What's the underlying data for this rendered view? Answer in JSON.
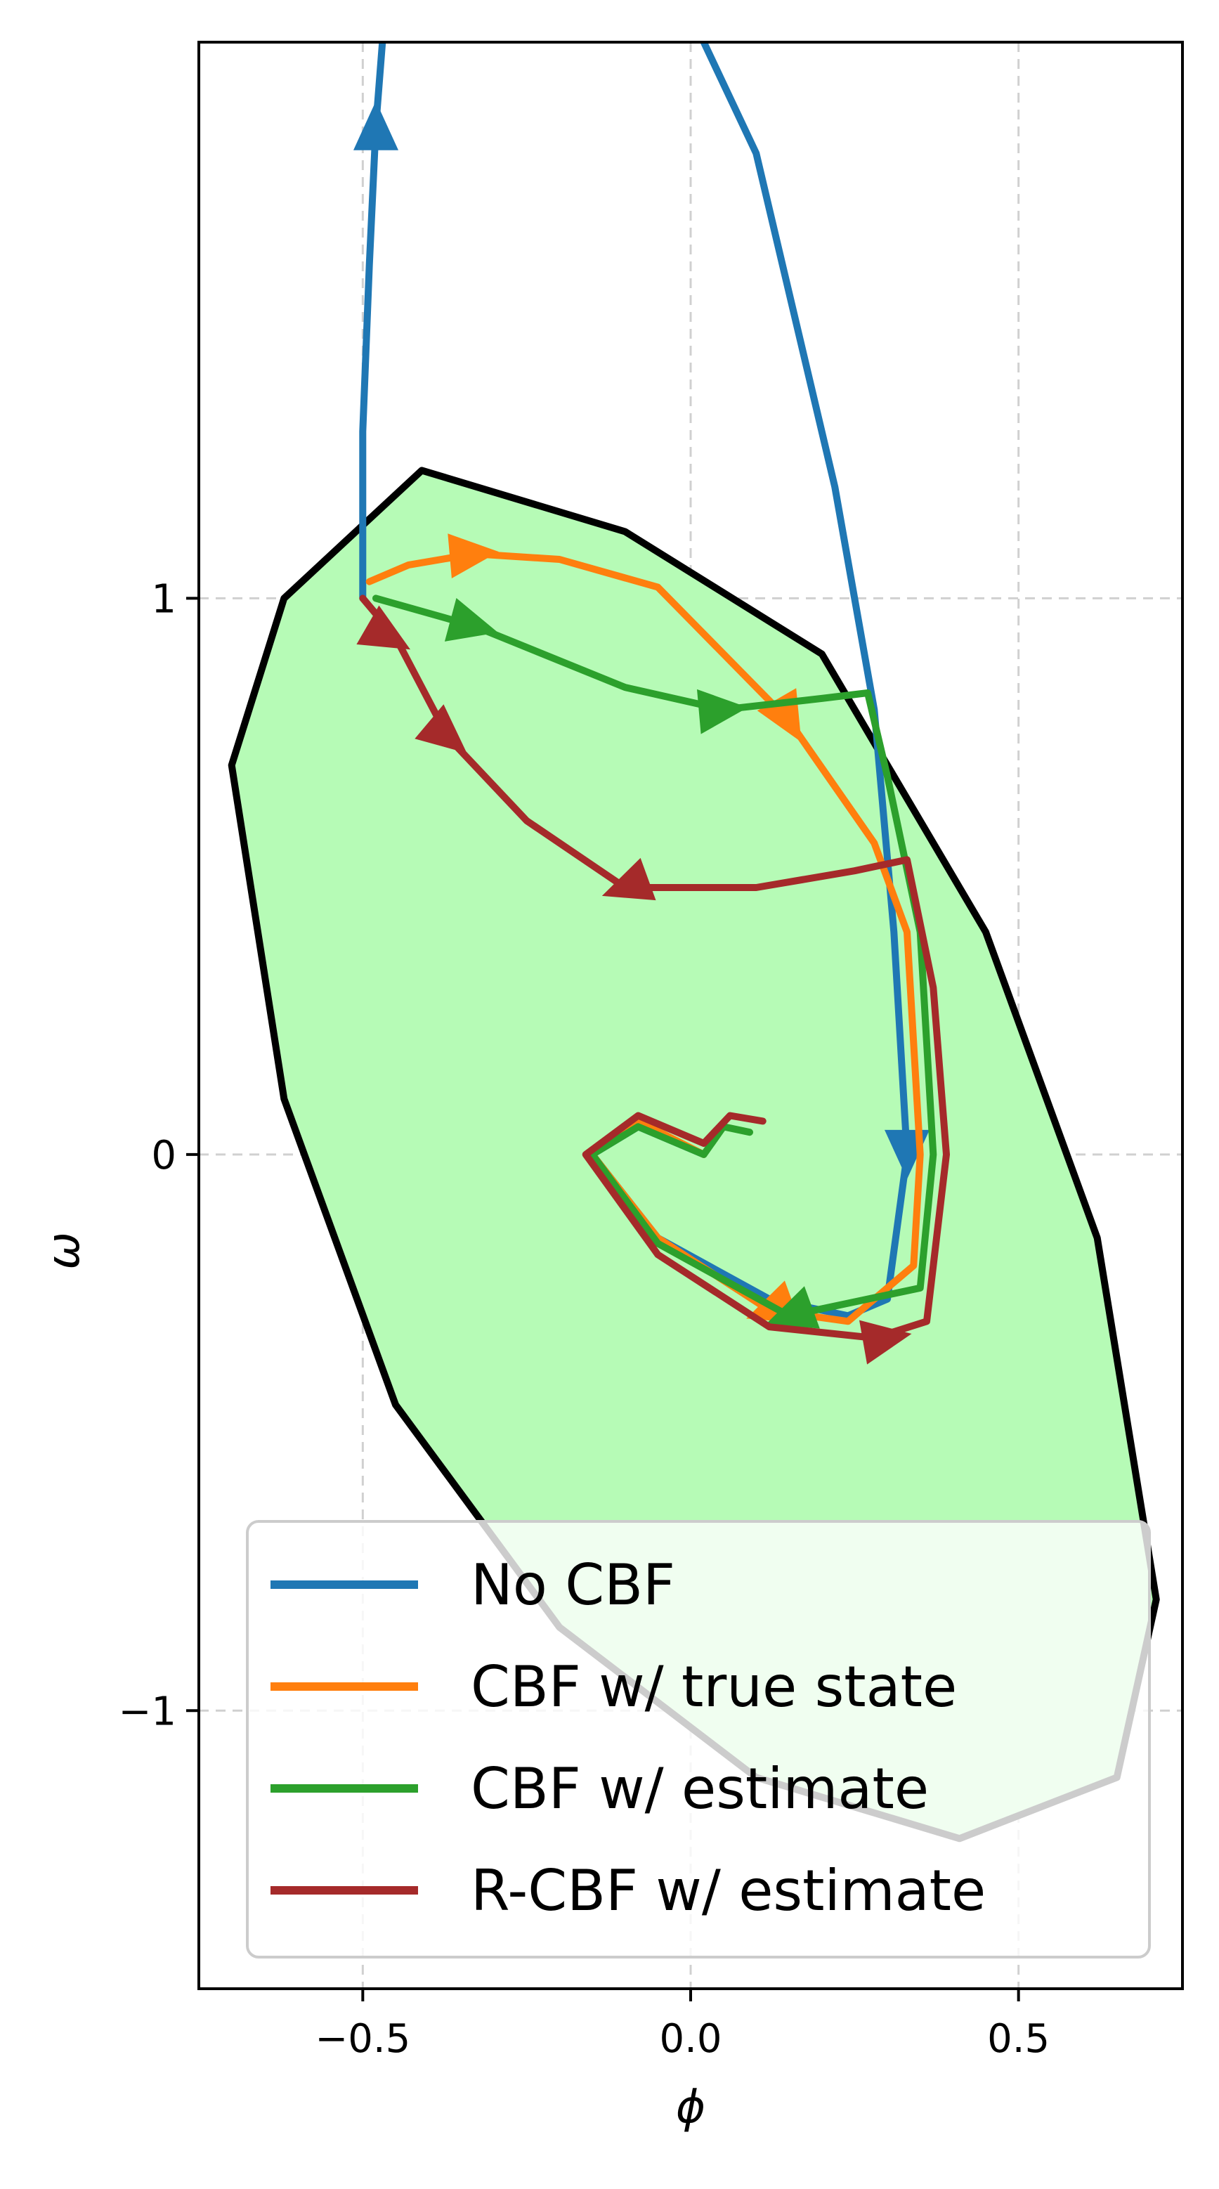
{
  "chart_data": {
    "type": "line",
    "xlabel": "ϕ",
    "ylabel": "ω",
    "xlim": [
      -0.75,
      0.75
    ],
    "ylim": [
      -1.5,
      2.0
    ],
    "xticks": [
      -0.5,
      0.0,
      0.5
    ],
    "xtick_labels": [
      "−0.5",
      "0.0",
      "0.5"
    ],
    "yticks": [
      -1,
      0,
      1
    ],
    "ytick_labels": [
      "−1",
      "0",
      "1"
    ],
    "grid": true,
    "legend_position": "lower-center",
    "safe_set": {
      "shape": "ellipse",
      "center": [
        0.0,
        0.0
      ],
      "fill_color": "#b6fbb6",
      "edge_color": "#000000",
      "boundary": [
        [
          -0.7,
          0.7
        ],
        [
          -0.62,
          1.0
        ],
        [
          -0.41,
          1.23
        ],
        [
          -0.1,
          1.12
        ],
        [
          0.2,
          0.9
        ],
        [
          0.45,
          0.4
        ],
        [
          0.62,
          -0.15
        ],
        [
          0.71,
          -0.8
        ],
        [
          0.65,
          -1.12
        ],
        [
          0.41,
          -1.23
        ],
        [
          0.1,
          -1.12
        ],
        [
          -0.2,
          -0.85
        ],
        [
          -0.45,
          -0.45
        ],
        [
          -0.62,
          0.1
        ],
        [
          -0.7,
          0.7
        ]
      ]
    },
    "series": [
      {
        "name": "No CBF",
        "color": "#1f77b4",
        "points": [
          [
            0.02,
            0.0
          ],
          [
            -0.08,
            0.05
          ],
          [
            -0.15,
            0.0
          ],
          [
            -0.05,
            -0.15
          ],
          [
            0.12,
            -0.26
          ],
          [
            0.24,
            -0.29
          ],
          [
            0.3,
            -0.26
          ],
          [
            0.33,
            0.0
          ],
          [
            0.31,
            0.4
          ],
          [
            0.28,
            0.8
          ],
          [
            0.22,
            1.2
          ],
          [
            0.1,
            1.8
          ],
          [
            0.02,
            2.0
          ]
        ],
        "prefix_points": [
          [
            -0.5,
            1.0
          ],
          [
            -0.5,
            1.3
          ],
          [
            -0.49,
            1.6
          ],
          [
            -0.48,
            1.85
          ],
          [
            -0.47,
            2.0
          ]
        ],
        "arrows": [
          [
            -0.48,
            1.85,
            90
          ],
          [
            0.33,
            0.0,
            270
          ]
        ]
      },
      {
        "name": "CBF w/ true state",
        "color": "#ff7f0e",
        "points": [
          [
            -0.49,
            1.03
          ],
          [
            -0.43,
            1.06
          ],
          [
            -0.33,
            1.08
          ],
          [
            -0.2,
            1.07
          ],
          [
            -0.05,
            1.02
          ],
          [
            0.15,
            0.78
          ],
          [
            0.28,
            0.56
          ],
          [
            0.33,
            0.4
          ],
          [
            0.35,
            0.0
          ],
          [
            0.34,
            -0.2
          ],
          [
            0.24,
            -0.3
          ],
          [
            0.12,
            -0.28
          ],
          [
            -0.05,
            -0.15
          ],
          [
            -0.15,
            0.0
          ],
          [
            -0.08,
            0.06
          ],
          [
            0.02,
            0.0
          ]
        ],
        "arrows": [
          [
            -0.33,
            1.08,
            5
          ],
          [
            0.15,
            0.78,
            300
          ],
          [
            0.12,
            -0.28,
            200
          ]
        ]
      },
      {
        "name": "CBF w/ estimate",
        "color": "#2ca02c",
        "points": [
          [
            -0.48,
            1.0
          ],
          [
            -0.33,
            0.95
          ],
          [
            -0.1,
            0.84
          ],
          [
            0.05,
            0.8
          ],
          [
            0.2,
            0.82
          ],
          [
            0.27,
            0.83
          ],
          [
            0.3,
            0.68
          ],
          [
            0.35,
            0.4
          ],
          [
            0.37,
            0.0
          ],
          [
            0.35,
            -0.24
          ],
          [
            0.15,
            -0.29
          ],
          [
            -0.05,
            -0.16
          ],
          [
            -0.15,
            0.0
          ],
          [
            -0.08,
            0.05
          ],
          [
            0.02,
            0.0
          ],
          [
            0.05,
            0.05
          ],
          [
            0.09,
            0.04
          ]
        ],
        "arrows": [
          [
            -0.33,
            0.95,
            345
          ],
          [
            0.05,
            0.8,
            5
          ],
          [
            0.15,
            -0.29,
            200
          ]
        ]
      },
      {
        "name": "R-CBF w/ estimate",
        "color": "#a52a2a",
        "points": [
          [
            -0.5,
            1.0
          ],
          [
            -0.45,
            0.93
          ],
          [
            -0.37,
            0.75
          ],
          [
            -0.25,
            0.6
          ],
          [
            -0.1,
            0.48
          ],
          [
            0.1,
            0.48
          ],
          [
            0.25,
            0.51
          ],
          [
            0.33,
            0.53
          ],
          [
            0.37,
            0.3
          ],
          [
            0.39,
            0.0
          ],
          [
            0.36,
            -0.3
          ],
          [
            0.28,
            -0.33
          ],
          [
            0.12,
            -0.31
          ],
          [
            -0.05,
            -0.18
          ],
          [
            -0.16,
            0.0
          ],
          [
            -0.08,
            0.07
          ],
          [
            0.02,
            0.02
          ],
          [
            0.06,
            0.07
          ],
          [
            0.11,
            0.06
          ]
        ],
        "arrows": [
          [
            -0.46,
            0.93,
            330
          ],
          [
            -0.37,
            0.75,
            320
          ],
          [
            -0.1,
            0.48,
            200
          ],
          [
            0.3,
            -0.33,
            10
          ]
        ]
      }
    ]
  }
}
